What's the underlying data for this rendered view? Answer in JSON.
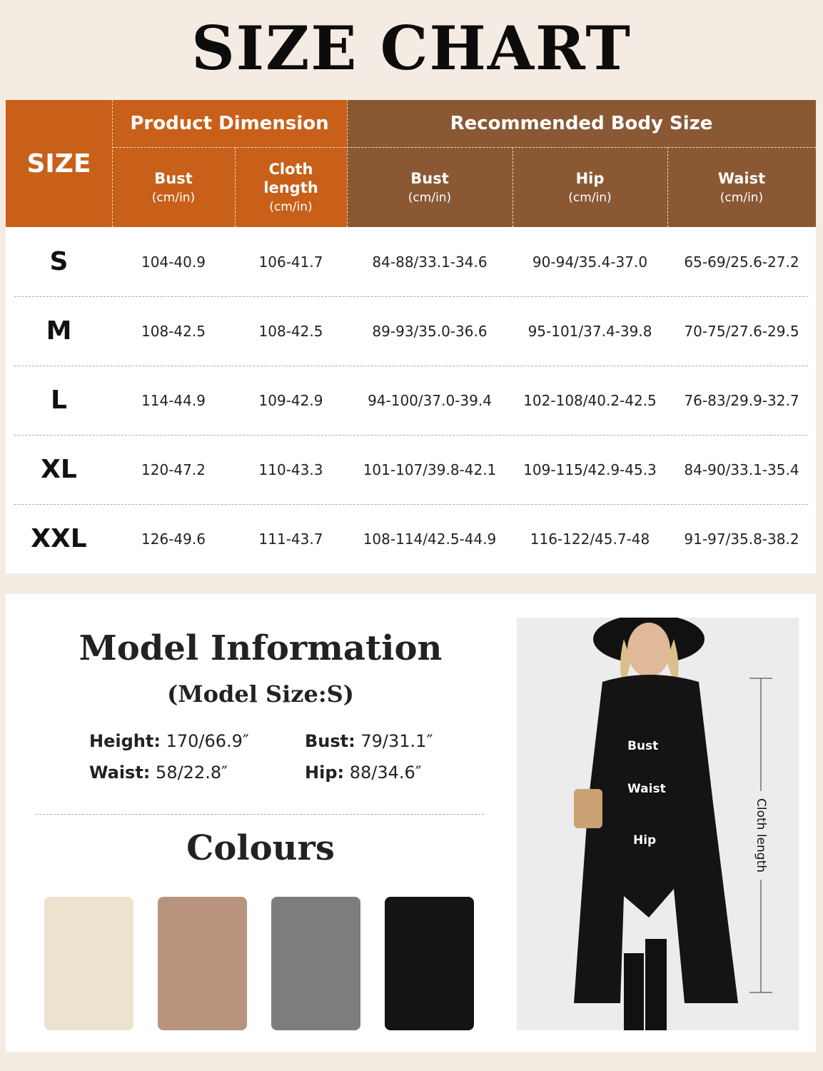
{
  "title": "SIZE CHART",
  "table": {
    "size_header": "SIZE",
    "group_product": "Product Dimension",
    "group_body": "Recommended Body Size",
    "columns": [
      {
        "label": "Bust",
        "unit": "(cm/in)"
      },
      {
        "label": "Cloth length",
        "unit": "(cm/in)"
      },
      {
        "label": "Bust",
        "unit": "(cm/in)"
      },
      {
        "label": "Hip",
        "unit": "(cm/in)"
      },
      {
        "label": "Waist",
        "unit": "(cm/in)"
      }
    ],
    "rows": [
      {
        "size": "S",
        "values": [
          "104-40.9",
          "106-41.7",
          "84-88/33.1-34.6",
          "90-94/35.4-37.0",
          "65-69/25.6-27.2"
        ]
      },
      {
        "size": "M",
        "values": [
          "108-42.5",
          "108-42.5",
          "89-93/35.0-36.6",
          "95-101/37.4-39.8",
          "70-75/27.6-29.5"
        ]
      },
      {
        "size": "L",
        "values": [
          "114-44.9",
          "109-42.9",
          "94-100/37.0-39.4",
          "102-108/40.2-42.5",
          "76-83/29.9-32.7"
        ]
      },
      {
        "size": "XL",
        "values": [
          "120-47.2",
          "110-43.3",
          "101-107/39.8-42.1",
          "109-115/42.9-45.3",
          "84-90/33.1-35.4"
        ]
      },
      {
        "size": "XXL",
        "values": [
          "126-49.6",
          "111-43.7",
          "108-114/42.5-44.9",
          "116-122/45.7-48",
          "91-97/35.8-38.2"
        ]
      }
    ],
    "colors": {
      "product_header": "#c8601a",
      "body_header": "#8a5934"
    }
  },
  "model": {
    "title": "Model Information",
    "subtitle": "(Model Size:S)",
    "height_label": "Height:",
    "height": "170/66.9″",
    "bust_label": "Bust:",
    "bust": "79/31.1″",
    "waist_label": "Waist:",
    "waist": "58/22.8″",
    "hip_label": "Hip:",
    "hip": "88/34.6″"
  },
  "colours": {
    "title": "Colours",
    "swatches": [
      "#ece3cf",
      "#b8937d",
      "#7d7d7d",
      "#141414"
    ]
  },
  "photo": {
    "bust": "Bust",
    "waist": "Waist",
    "hip": "Hip",
    "cloth_length": "Cloth length"
  }
}
